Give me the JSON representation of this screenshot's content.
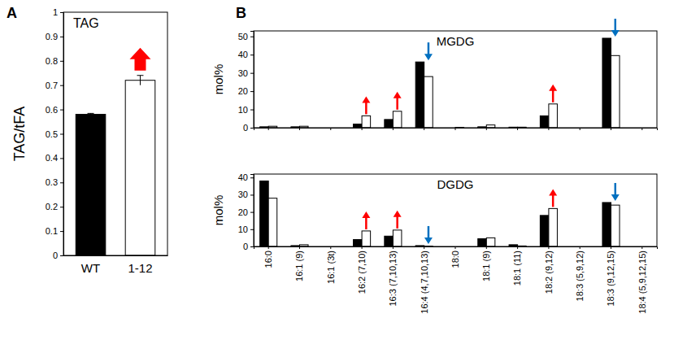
{
  "chart_data": [
    {
      "type": "bar",
      "panel_label": "A",
      "title": "TAG",
      "y_label": "TAG/tFA",
      "categories": [
        "WT",
        "1-12"
      ],
      "series": [
        {
          "values": [
            0.58,
            0.72
          ],
          "errors": [
            0.004,
            0.02
          ],
          "colors": [
            "#000000",
            "#ffffff"
          ]
        }
      ],
      "ylim": [
        0,
        1
      ],
      "yticks": [
        0,
        0.1,
        0.2,
        0.3,
        0.4,
        0.5,
        0.6,
        0.7,
        0.8,
        0.9,
        1
      ],
      "arrows": [
        {
          "category": "1-12",
          "direction": "up",
          "color": "#ff0000"
        }
      ]
    },
    {
      "type": "bar",
      "panel_label": "B",
      "title": "MGDG",
      "y_label": "mol%",
      "categories": [
        "16:0",
        "16:1 (9)",
        "16:1 (3t)",
        "16:2 (7,10)",
        "16:3 (7,10,13)",
        "16:4 (4,7,10,13)",
        "18:0",
        "18:1 (9)",
        "18:1 (11)",
        "18:2 (9,12)",
        "18:3 (5,9,12)",
        "18:3 (9,12,15)",
        "18:4 (5,9,12,15)"
      ],
      "series": [
        {
          "color": "#000000",
          "values": [
            0.5,
            0.5,
            0,
            2,
            4.5,
            36,
            0,
            0.5,
            0.3,
            6.5,
            0,
            49,
            0
          ]
        },
        {
          "color": "#ffffff",
          "values": [
            0.8,
            0.8,
            0,
            6.5,
            9,
            28,
            0.2,
            1.5,
            0.3,
            13,
            0,
            39.5,
            0
          ]
        }
      ],
      "ylim": [
        0,
        53
      ],
      "yticks": [
        0,
        10,
        20,
        30,
        40,
        50
      ],
      "tick_labels": "y",
      "arrows": [
        {
          "category": "16:2 (7,10)",
          "direction": "up",
          "color": "#ff0000"
        },
        {
          "category": "16:3 (7,10,13)",
          "direction": "up",
          "color": "#ff0000"
        },
        {
          "category": "16:4 (4,7,10,13)",
          "direction": "down",
          "color": "#0070c0"
        },
        {
          "category": "18:2 (9,12)",
          "direction": "up",
          "color": "#ff0000"
        },
        {
          "category": "18:3 (9,12,15)",
          "direction": "down",
          "color": "#0070c0"
        }
      ]
    },
    {
      "type": "bar",
      "title": "DGDG",
      "y_label": "mol%",
      "categories": [
        "16:0",
        "16:1 (9)",
        "16:1 (3t)",
        "16:2 (7,10)",
        "16:3 (7,10,13)",
        "16:4 (4,7,10,13)",
        "18:0",
        "18:1 (9)",
        "18:1 (11)",
        "18:2 (9,12)",
        "18:3 (5,9,12)",
        "18:3 (9,12,15)",
        "18:4 (5,9,12,15)"
      ],
      "series": [
        {
          "color": "#000000",
          "values": [
            38,
            0.5,
            0,
            4,
            6,
            0.5,
            0,
            4.5,
            1,
            18,
            0,
            25.5,
            0
          ]
        },
        {
          "color": "#ffffff",
          "values": [
            28,
            1,
            0,
            9,
            9.5,
            0.2,
            0,
            5,
            0.3,
            22,
            0,
            24,
            0
          ]
        }
      ],
      "ylim": [
        0,
        42
      ],
      "yticks": [
        0,
        10,
        20,
        30,
        40
      ],
      "arrows": [
        {
          "category": "16:2 (7,10)",
          "direction": "up",
          "color": "#ff0000"
        },
        {
          "category": "16:3 (7,10,13)",
          "direction": "up",
          "color": "#ff0000"
        },
        {
          "category": "16:4 (4,7,10,13)",
          "direction": "down",
          "color": "#0070c0"
        },
        {
          "category": "18:2 (9,12)",
          "direction": "up",
          "color": "#ff0000"
        },
        {
          "category": "18:3 (9,12,15)",
          "direction": "down",
          "color": "#0070c0"
        }
      ]
    }
  ]
}
